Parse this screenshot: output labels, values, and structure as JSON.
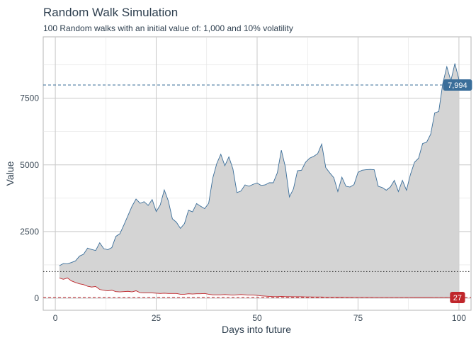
{
  "chart_data": {
    "type": "area",
    "title": "Random Walk Simulation",
    "subtitle": "100 Random walks with an initial value of: 1,000 and 10% volatility",
    "xlabel": "Days into future",
    "ylabel": "Value",
    "xlim": [
      -3,
      103
    ],
    "ylim": [
      -450,
      9800
    ],
    "x_ticks": [
      0,
      25,
      50,
      75,
      100
    ],
    "y_ticks": [
      0,
      2500,
      5000,
      7500
    ],
    "x_tick_labels": [
      "0",
      "25",
      "50",
      "75",
      "100"
    ],
    "y_tick_labels": [
      "0",
      "2500",
      "5000",
      "7500"
    ],
    "grid": true,
    "initial_value": 1000,
    "series": [
      {
        "role": "max",
        "color": "#3a6e9a",
        "x": [
          1,
          2,
          3,
          4,
          5,
          6,
          7,
          8,
          9,
          10,
          11,
          12,
          13,
          14,
          15,
          16,
          17,
          18,
          19,
          20,
          21,
          22,
          23,
          24,
          25,
          26,
          27,
          28,
          29,
          30,
          31,
          32,
          33,
          34,
          35,
          36,
          37,
          38,
          39,
          40,
          41,
          42,
          43,
          44,
          45,
          46,
          47,
          48,
          49,
          50,
          51,
          52,
          53,
          54,
          55,
          56,
          57,
          58,
          59,
          60,
          61,
          62,
          63,
          64,
          65,
          66,
          67,
          68,
          69,
          70,
          71,
          72,
          73,
          74,
          75,
          76,
          77,
          78,
          79,
          80,
          81,
          82,
          83,
          84,
          85,
          86,
          87,
          88,
          89,
          90,
          91,
          92,
          93,
          94,
          95,
          96,
          97,
          98,
          99,
          100
        ],
        "values": [
          1220,
          1300,
          1290,
          1340,
          1400,
          1580,
          1650,
          1880,
          1830,
          1790,
          2080,
          1860,
          1820,
          1900,
          2320,
          2420,
          2750,
          3100,
          3450,
          3720,
          3560,
          3620,
          3480,
          3700,
          3250,
          3500,
          4060,
          3650,
          2980,
          2850,
          2620,
          2800,
          3300,
          3240,
          3550,
          3450,
          3360,
          3560,
          4500,
          5050,
          5400,
          4970,
          5300,
          4850,
          3960,
          4020,
          4250,
          4200,
          4270,
          4320,
          4230,
          4250,
          4330,
          4330,
          4700,
          5550,
          4920,
          3800,
          4100,
          4780,
          4800,
          5100,
          5250,
          5320,
          5420,
          5780,
          4900,
          4700,
          4520,
          4000,
          4540,
          4200,
          4170,
          4260,
          4720,
          4800,
          4820,
          4830,
          4820,
          4200,
          4150,
          4050,
          4170,
          4420,
          4000,
          4420,
          4050,
          4650,
          5100,
          5250,
          5800,
          5850,
          6150,
          6950,
          7000,
          8050,
          8680,
          8150,
          8800,
          8200
        ]
      },
      {
        "role": "min",
        "color": "#c0262b",
        "x": [
          1,
          2,
          3,
          4,
          5,
          6,
          7,
          8,
          9,
          10,
          11,
          12,
          13,
          14,
          15,
          16,
          17,
          18,
          19,
          20,
          21,
          22,
          23,
          24,
          25,
          26,
          27,
          28,
          29,
          30,
          31,
          32,
          33,
          34,
          35,
          36,
          37,
          38,
          39,
          40,
          41,
          42,
          43,
          44,
          45,
          46,
          47,
          48,
          49,
          50,
          51,
          52,
          53,
          54,
          55,
          56,
          57,
          58,
          59,
          60,
          61,
          62,
          63,
          64,
          65,
          66,
          67,
          68,
          69,
          70,
          71,
          72,
          73,
          74,
          75,
          76,
          77,
          78,
          79,
          80,
          81,
          82,
          83,
          84,
          85,
          86,
          87,
          88,
          89,
          90,
          91,
          92,
          93,
          94,
          95,
          96,
          97,
          98,
          99,
          100
        ],
        "values": [
          760,
          710,
          760,
          650,
          590,
          540,
          510,
          450,
          420,
          440,
          330,
          300,
          280,
          300,
          250,
          240,
          250,
          260,
          240,
          280,
          210,
          200,
          200,
          200,
          190,
          180,
          190,
          180,
          180,
          180,
          150,
          150,
          170,
          160,
          170,
          170,
          180,
          150,
          130,
          130,
          130,
          140,
          130,
          120,
          130,
          140,
          130,
          120,
          120,
          110,
          90,
          80,
          70,
          60,
          60,
          70,
          60,
          60,
          55,
          55,
          55,
          50,
          50,
          45,
          45,
          45,
          40,
          40,
          40,
          38,
          38,
          36,
          35,
          34,
          34,
          33,
          32,
          32,
          31,
          31,
          30,
          30,
          30,
          30,
          30,
          30,
          30,
          30,
          28,
          28,
          28,
          28,
          28,
          27,
          27,
          27,
          27,
          27,
          27,
          27
        ]
      }
    ],
    "reference_lines": [
      {
        "role": "mean_of_max",
        "value": 7994,
        "color": "#3a6e9a",
        "style": "dashed",
        "label": "7,994"
      },
      {
        "role": "mean_of_min",
        "value": 27,
        "color": "#c0262b",
        "style": "dashed",
        "label": "27"
      },
      {
        "role": "initial",
        "value": 1000,
        "color": "#222222",
        "style": "dotted",
        "label": ""
      }
    ],
    "fill_color": "#d4d4d4"
  }
}
